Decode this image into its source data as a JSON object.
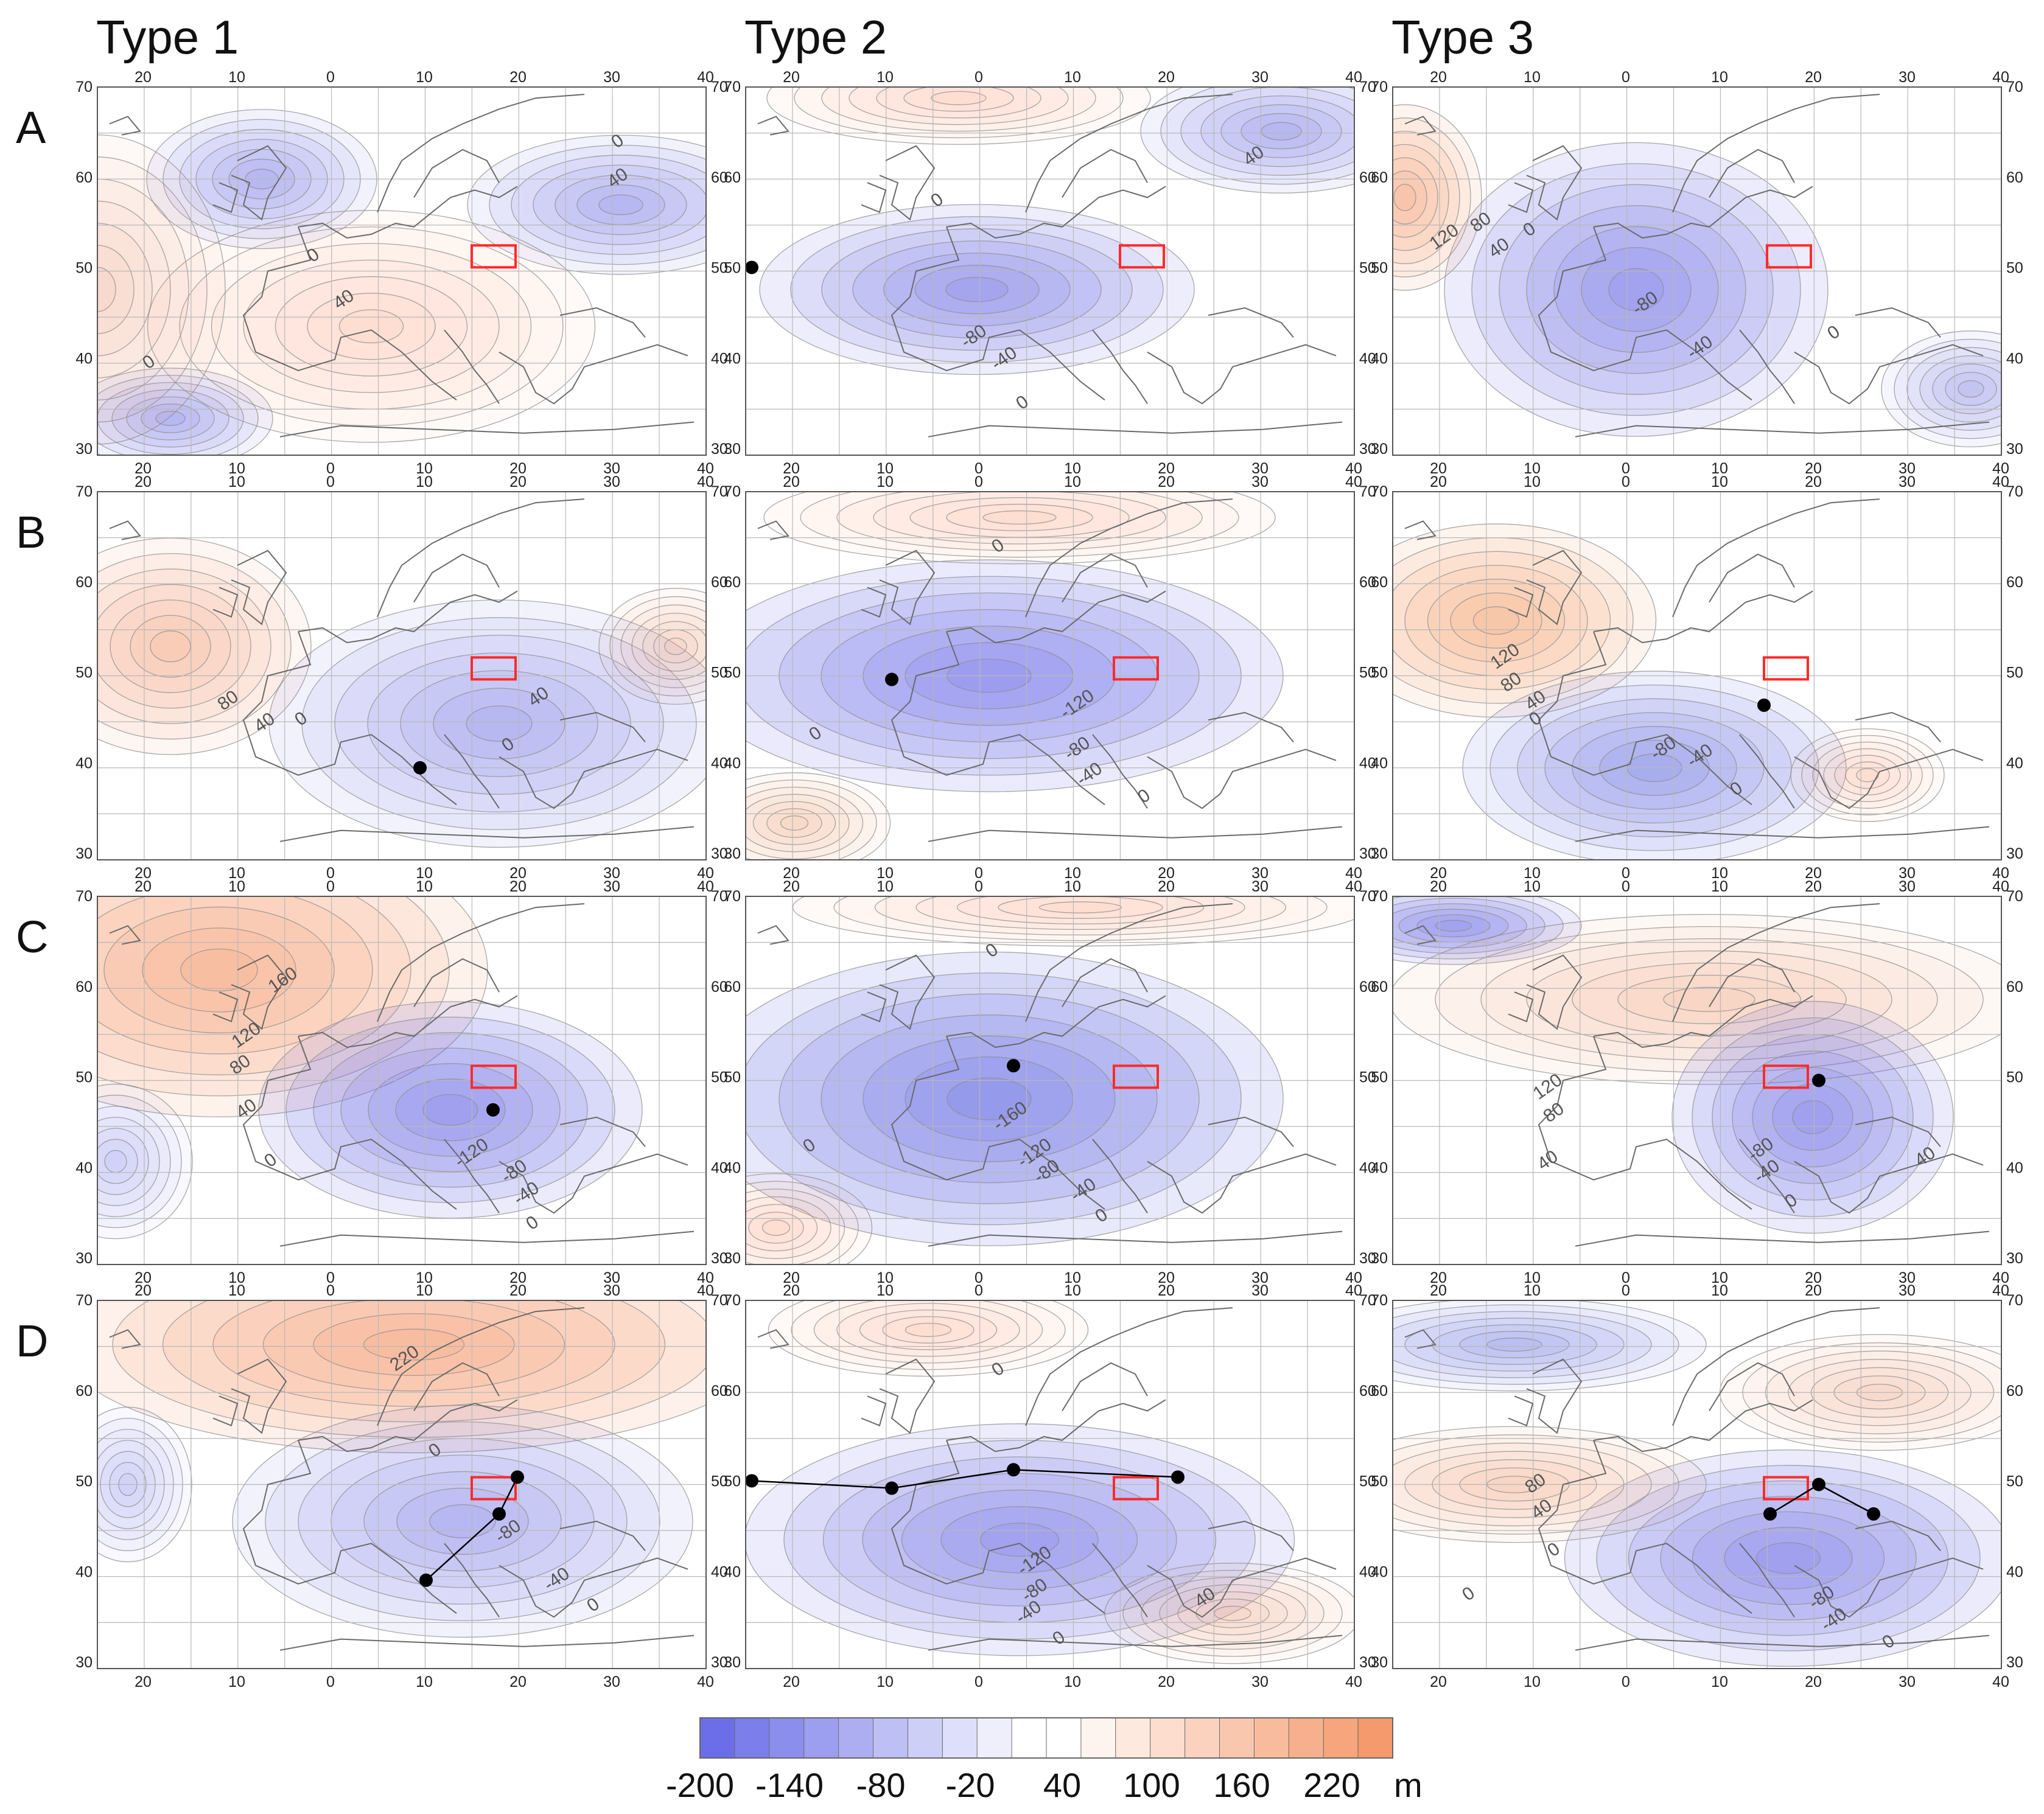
{
  "columns": [
    "Type 1",
    "Type 2",
    "Type 3"
  ],
  "rows": [
    "A",
    "B",
    "C",
    "D"
  ],
  "axes": {
    "lon_ticks": [
      "20",
      "10",
      "0",
      "10",
      "20",
      "30",
      "40"
    ],
    "lat_ticks": [
      "70",
      "60",
      "50",
      "40",
      "30"
    ]
  },
  "colorbar": {
    "ticks": [
      "-200",
      "-140",
      "-80",
      "-20",
      "40",
      "100",
      "160",
      "220"
    ],
    "unit": "m",
    "colors": {
      "negative_strong": "#6b6ee8",
      "neutral": "#ffffff",
      "positive_strong": "#f59a6c"
    }
  },
  "colors": {
    "target_box": "#ff2a2a",
    "track": "#000000",
    "contour": "#8c8c8c",
    "coastline": "#6a6a6a",
    "grid": "#b8b8b8"
  },
  "panels": [
    {
      "row": "A",
      "col": "Type 1",
      "labels": [
        "0",
        "40",
        "0",
        "40",
        "0"
      ]
    },
    {
      "row": "A",
      "col": "Type 2",
      "labels": [
        "40",
        "0",
        "-80",
        "-40",
        "0"
      ]
    },
    {
      "row": "A",
      "col": "Type 3",
      "labels": [
        "120",
        "80",
        "40",
        "0",
        "-80",
        "-40",
        "0"
      ]
    },
    {
      "row": "B",
      "col": "Type 1",
      "labels": [
        "80",
        "40",
        "0",
        "40",
        "0"
      ]
    },
    {
      "row": "B",
      "col": "Type 2",
      "labels": [
        "0",
        "0",
        "-120",
        "-80",
        "-40",
        "0"
      ]
    },
    {
      "row": "B",
      "col": "Type 3",
      "labels": [
        "120",
        "80",
        "40",
        "0",
        "-80",
        "-40",
        "0"
      ]
    },
    {
      "row": "C",
      "col": "Type 1",
      "labels": [
        "160",
        "120",
        "80",
        "40",
        "0",
        "-120",
        "-80",
        "-40",
        "0"
      ]
    },
    {
      "row": "C",
      "col": "Type 2",
      "labels": [
        "0",
        "0",
        "-160",
        "-120",
        "-80",
        "-40",
        "0"
      ]
    },
    {
      "row": "C",
      "col": "Type 3",
      "labels": [
        "120",
        "80",
        "40",
        "-80",
        "-40",
        "0",
        "40"
      ]
    },
    {
      "row": "D",
      "col": "Type 1",
      "labels": [
        "220",
        "0",
        "-80",
        "-40",
        "0"
      ]
    },
    {
      "row": "D",
      "col": "Type 2",
      "labels": [
        "0",
        "-120",
        "-80",
        "-40",
        "0",
        "40"
      ]
    },
    {
      "row": "D",
      "col": "Type 3",
      "labels": [
        "80",
        "40",
        "0",
        "0",
        "-80",
        "-40",
        "0"
      ]
    }
  ]
}
